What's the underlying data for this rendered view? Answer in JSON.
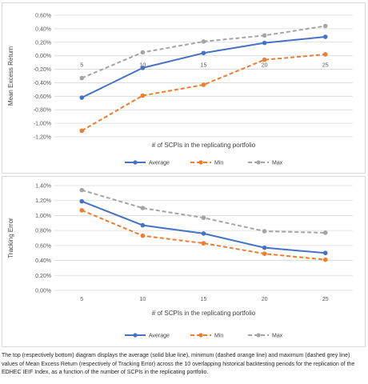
{
  "caption": "The top (respectively bottom) diagram displays the average (solid blue line), minimum (dashed orange line) and maximum (dashed grey line) values of Mean Excess Return (respectively of Tracking Error) across the 10 overlapping historical backtesting periods for the replication of the EDHEC IEIF Index, as a function of the number of SCPIs in the replicating portfolio.",
  "series_colors": {
    "Average": "#4472c4",
    "Min": "#ed7d31",
    "Max": "#a5a5a5"
  },
  "chart_data": [
    {
      "type": "line",
      "x": [
        5,
        10,
        15,
        20,
        25
      ],
      "xlabel": "# of SCPIs in the replicating portfolio",
      "ylabel": "Mean Excess Return",
      "ylim": [
        -1.2,
        0.6
      ],
      "yticks": [
        "0,60%",
        "0,40%",
        "0,20%",
        "0,00%",
        "-0,20%",
        "-0,40%",
        "-0,60%",
        "-0,80%",
        "-1,00%",
        "-1,20%"
      ],
      "grid": true,
      "legend": "bottom",
      "x_labels_position": "at zero line",
      "series": [
        {
          "name": "Average",
          "values": [
            -0.62,
            -0.18,
            0.04,
            0.19,
            0.28
          ],
          "style": "solid"
        },
        {
          "name": "Min",
          "values": [
            -1.11,
            -0.59,
            -0.43,
            -0.06,
            0.02
          ],
          "style": "dashed"
        },
        {
          "name": "Max",
          "values": [
            -0.33,
            0.05,
            0.21,
            0.3,
            0.44
          ],
          "style": "dashed"
        }
      ]
    },
    {
      "type": "line",
      "x": [
        5,
        10,
        15,
        20,
        25
      ],
      "xlabel": "# of SCPIs in the replicating portfolio",
      "ylabel": "Tracking Error",
      "ylim": [
        0,
        1.4
      ],
      "yticks": [
        "1,40%",
        "1,20%",
        "1,00%",
        "0,80%",
        "0,60%",
        "0,40%",
        "0,20%",
        "0,00%"
      ],
      "grid": true,
      "legend": "bottom",
      "x_labels_position": "bottom",
      "series": [
        {
          "name": "Average",
          "values": [
            1.19,
            0.87,
            0.76,
            0.57,
            0.5
          ],
          "style": "solid"
        },
        {
          "name": "Min",
          "values": [
            1.07,
            0.73,
            0.63,
            0.49,
            0.41
          ],
          "style": "dashed"
        },
        {
          "name": "Max",
          "values": [
            1.34,
            1.1,
            0.97,
            0.79,
            0.77
          ],
          "style": "dashed"
        }
      ]
    }
  ]
}
